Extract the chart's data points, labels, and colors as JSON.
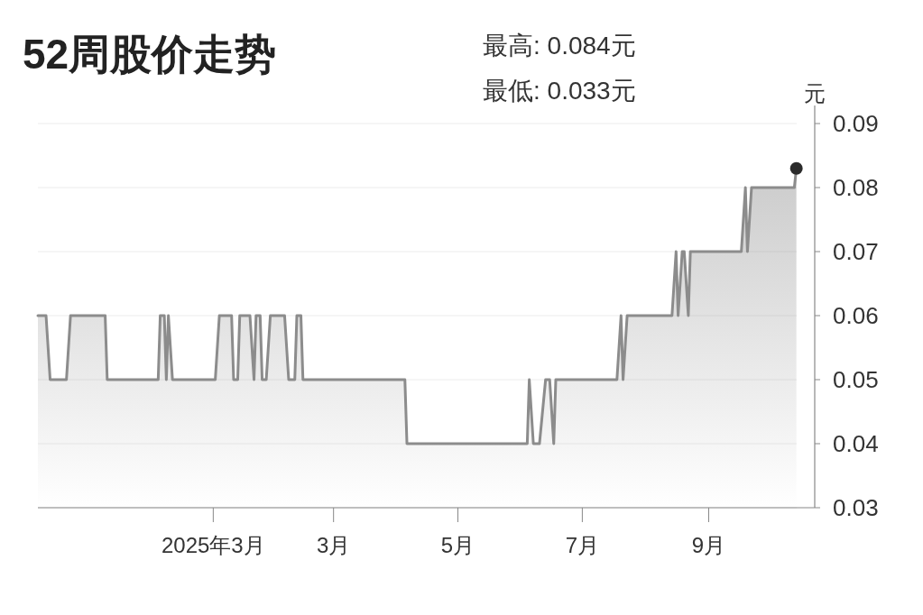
{
  "chart_data": {
    "type": "area",
    "title": "52周股价走势",
    "ylabel": "元",
    "annotations": [
      "最高: 0.084元",
      "最低: 0.033元"
    ],
    "xlim": [
      "2024-10-07",
      "2025-10-23"
    ],
    "ylim": [
      0.03,
      0.09
    ],
    "yticks": [
      0.03,
      0.04,
      0.05,
      0.06,
      0.07,
      0.08,
      0.09
    ],
    "xticks": [
      {
        "value": "2025-01-01",
        "label": "2025年3月"
      },
      {
        "value": "2025-03-01",
        "label": "3月"
      },
      {
        "value": "2025-05-01",
        "label": "5月"
      },
      {
        "value": "2025-07-01",
        "label": "7月"
      },
      {
        "value": "2025-09-01",
        "label": "9月"
      }
    ],
    "grid": "y",
    "series": [
      {
        "color": "#8c8c8c",
        "x": [
          "2024-10-07",
          "2024-10-11",
          "2024-10-13",
          "2024-10-21",
          "2024-10-23",
          "2024-11-09",
          "2024-11-10",
          "2024-12-05",
          "2024-12-06",
          "2024-12-08",
          "2024-12-09",
          "2024-12-10",
          "2024-12-12",
          "2025-01-02",
          "2025-01-04",
          "2025-01-10",
          "2025-01-11",
          "2025-01-13",
          "2025-01-14",
          "2025-01-19",
          "2025-01-21",
          "2025-01-22",
          "2025-01-24",
          "2025-01-25",
          "2025-01-27",
          "2025-01-29",
          "2025-02-05",
          "2025-02-07",
          "2025-02-10",
          "2025-02-11",
          "2025-02-13",
          "2025-02-14",
          "2025-04-05",
          "2025-04-06",
          "2025-06-04",
          "2025-06-05",
          "2025-06-07",
          "2025-06-10",
          "2025-06-13",
          "2025-06-15",
          "2025-06-17",
          "2025-06-18",
          "2025-07-18",
          "2025-07-20",
          "2025-07-21",
          "2025-07-23",
          "2025-08-14",
          "2025-08-16",
          "2025-08-17",
          "2025-08-19",
          "2025-08-20",
          "2025-08-22",
          "2025-08-23",
          "2025-09-17",
          "2025-09-19",
          "2025-09-20",
          "2025-09-22",
          "2025-10-13",
          "2025-10-14"
        ],
        "values": [
          0.06,
          0.06,
          0.05,
          0.05,
          0.06,
          0.06,
          0.05,
          0.05,
          0.06,
          0.06,
          0.05,
          0.06,
          0.05,
          0.05,
          0.06,
          0.06,
          0.05,
          0.05,
          0.06,
          0.06,
          0.05,
          0.06,
          0.06,
          0.05,
          0.05,
          0.06,
          0.06,
          0.05,
          0.05,
          0.06,
          0.06,
          0.05,
          0.05,
          0.04,
          0.04,
          0.05,
          0.04,
          0.04,
          0.05,
          0.05,
          0.04,
          0.05,
          0.05,
          0.06,
          0.05,
          0.06,
          0.06,
          0.07,
          0.06,
          0.07,
          0.07,
          0.06,
          0.07,
          0.07,
          0.08,
          0.07,
          0.08,
          0.08,
          0.083
        ]
      },
      {
        "type": "scatter",
        "color": "#2b2b2b",
        "x": [
          "2025-10-14"
        ],
        "values": [
          0.083
        ]
      }
    ]
  }
}
